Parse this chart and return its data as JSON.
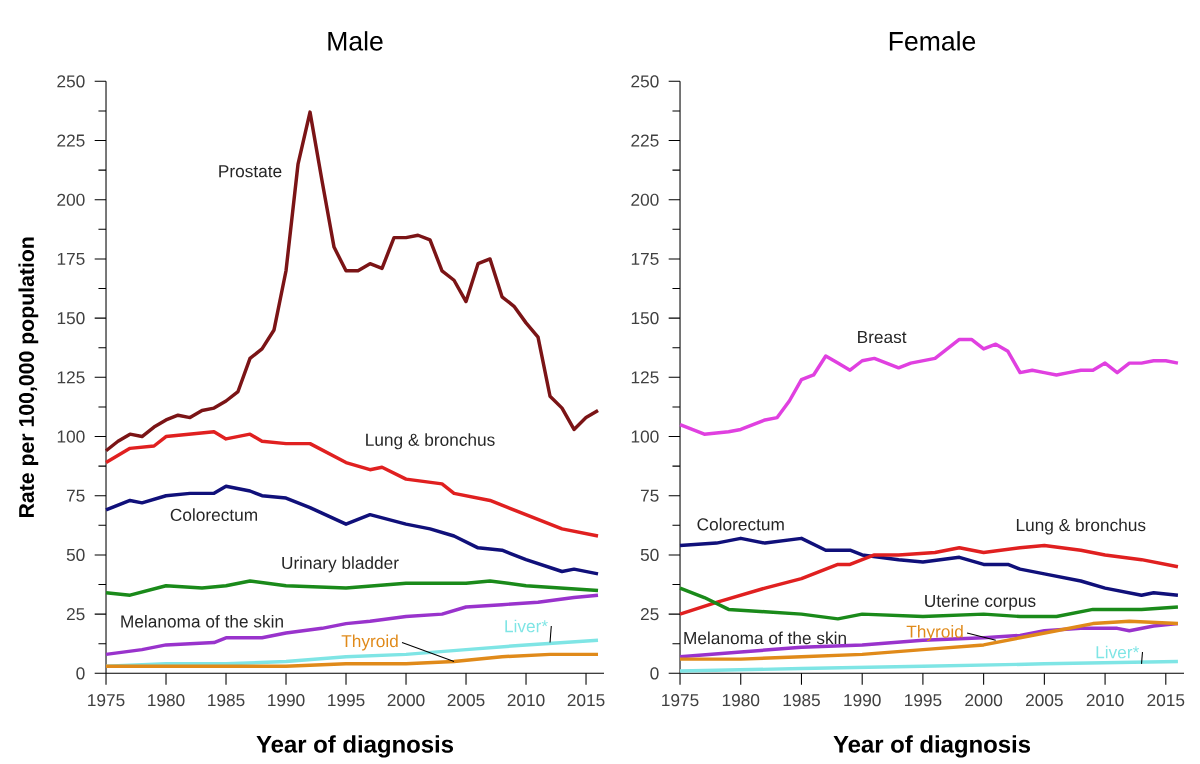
{
  "chart_data": [
    {
      "type": "line",
      "title": "Male",
      "xlabel": "Year of diagnosis",
      "ylabel": "Rate per 100,000 population",
      "xlim": [
        1975,
        2016.5
      ],
      "ylim": [
        0,
        250
      ],
      "xticks": [
        1975,
        1980,
        1985,
        1990,
        1995,
        2000,
        2005,
        2010,
        2015
      ],
      "yticks": [
        0,
        25,
        50,
        75,
        100,
        125,
        150,
        175,
        200,
        225,
        250
      ],
      "grid": false,
      "legend": false,
      "marker": "none",
      "line_style": "solid",
      "series": [
        {
          "name": "Prostate",
          "color": "#7b1416",
          "x": [
            1975,
            1976,
            1977,
            1978,
            1979,
            1980,
            1981,
            1982,
            1983,
            1984,
            1985,
            1986,
            1987,
            1988,
            1989,
            1990,
            1991,
            1992,
            1993,
            1994,
            1995,
            1996,
            1997,
            1998,
            1999,
            2000,
            2001,
            2002,
            2003,
            2004,
            2005,
            2006,
            2007,
            2008,
            2009,
            2010,
            2011,
            2012,
            2013,
            2014,
            2015,
            2016
          ],
          "values": [
            94,
            98,
            101,
            100,
            104,
            107,
            109,
            108,
            111,
            112,
            115,
            119,
            133,
            137,
            145,
            170,
            215,
            237,
            208,
            180,
            170,
            170,
            173,
            171,
            184,
            184,
            185,
            183,
            170,
            166,
            157,
            173,
            175,
            159,
            155,
            148,
            142,
            117,
            112,
            103,
            108,
            111
          ]
        },
        {
          "name": "Lung & bronchus",
          "color": "#e02020",
          "x": [
            1975,
            1977,
            1979,
            1980,
            1984,
            1985,
            1987,
            1988,
            1990,
            1992,
            1995,
            1997,
            1998,
            2000,
            2003,
            2004,
            2007,
            2010,
            2013,
            2016
          ],
          "values": [
            89,
            95,
            96,
            100,
            102,
            99,
            101,
            98,
            97,
            97,
            89,
            86,
            87,
            82,
            80,
            76,
            73,
            67,
            61,
            58
          ]
        },
        {
          "name": "Colorectum",
          "color": "#10107a",
          "x": [
            1975,
            1977,
            1978,
            1980,
            1982,
            1984,
            1985,
            1987,
            1988,
            1990,
            1992,
            1995,
            1997,
            2000,
            2002,
            2004,
            2006,
            2008,
            2010,
            2013,
            2014,
            2016
          ],
          "values": [
            69,
            73,
            72,
            75,
            76,
            76,
            79,
            77,
            75,
            74,
            70,
            63,
            67,
            63,
            61,
            58,
            53,
            52,
            48,
            43,
            44,
            42
          ]
        },
        {
          "name": "Urinary bladder",
          "color": "#1a8a1a",
          "x": [
            1975,
            1977,
            1980,
            1983,
            1985,
            1987,
            1990,
            1995,
            2000,
            2005,
            2007,
            2010,
            2013,
            2016
          ],
          "values": [
            34,
            33,
            37,
            36,
            37,
            39,
            37,
            36,
            38,
            38,
            39,
            37,
            36,
            35
          ]
        },
        {
          "name": "Melanoma of the skin",
          "color": "#9933cc",
          "x": [
            1975,
            1978,
            1980,
            1984,
            1985,
            1988,
            1990,
            1993,
            1995,
            1997,
            2000,
            2003,
            2005,
            2008,
            2011,
            2014,
            2016
          ],
          "values": [
            8,
            10,
            12,
            13,
            15,
            15,
            17,
            19,
            21,
            22,
            24,
            25,
            28,
            29,
            30,
            32,
            33
          ]
        },
        {
          "name": "Liver*",
          "color": "#7fe5e5",
          "x": [
            1975,
            1980,
            1985,
            1990,
            1995,
            2000,
            2005,
            2010,
            2016
          ],
          "values": [
            3,
            4,
            4,
            5,
            7,
            8,
            10,
            12,
            14
          ]
        },
        {
          "name": "Thyroid",
          "color": "#e08a1a",
          "x": [
            1975,
            1980,
            1985,
            1990,
            1995,
            2000,
            2004,
            2008,
            2012,
            2016
          ],
          "values": [
            3,
            3,
            3,
            3,
            4,
            4,
            5,
            7,
            8,
            8
          ]
        }
      ]
    },
    {
      "type": "line",
      "title": "Female",
      "xlabel": "Year of diagnosis",
      "xlim": [
        1975,
        2016.5
      ],
      "ylim": [
        0,
        250
      ],
      "xticks": [
        1975,
        1980,
        1985,
        1990,
        1995,
        2000,
        2005,
        2010,
        2015
      ],
      "yticks": [
        0,
        25,
        50,
        75,
        100,
        125,
        150,
        175,
        200,
        225,
        250
      ],
      "grid": false,
      "legend": false,
      "marker": "none",
      "line_style": "solid",
      "series": [
        {
          "name": "Breast",
          "color": "#e040e0",
          "x": [
            1975,
            1977,
            1979,
            1980,
            1982,
            1983,
            1984,
            1985,
            1986,
            1987,
            1988,
            1989,
            1990,
            1991,
            1992,
            1993,
            1994,
            1995,
            1996,
            1997,
            1998,
            1999,
            2000,
            2001,
            2002,
            2003,
            2004,
            2005,
            2006,
            2007,
            2008,
            2009,
            2010,
            2011,
            2012,
            2013,
            2014,
            2015,
            2016
          ],
          "values": [
            105,
            101,
            102,
            103,
            107,
            108,
            115,
            124,
            126,
            134,
            131,
            128,
            132,
            133,
            131,
            129,
            131,
            132,
            133,
            137,
            141,
            141,
            137,
            139,
            136,
            127,
            128,
            127,
            126,
            127,
            128,
            128,
            131,
            127,
            131,
            131,
            132,
            132,
            131
          ]
        },
        {
          "name": "Colorectum",
          "color": "#10107a",
          "x": [
            1975,
            1978,
            1980,
            1982,
            1985,
            1987,
            1989,
            1990,
            1993,
            1995,
            1998,
            2000,
            2002,
            2003,
            2005,
            2008,
            2010,
            2013,
            2014,
            2016
          ],
          "values": [
            54,
            55,
            57,
            55,
            57,
            52,
            52,
            50,
            48,
            47,
            49,
            46,
            46,
            44,
            42,
            39,
            36,
            33,
            34,
            33
          ]
        },
        {
          "name": "Lung & bronchus",
          "color": "#e02020",
          "x": [
            1975,
            1978,
            1980,
            1982,
            1985,
            1988,
            1989,
            1991,
            1993,
            1996,
            1998,
            2000,
            2003,
            2005,
            2008,
            2010,
            2013,
            2016
          ],
          "values": [
            25,
            30,
            33,
            36,
            40,
            46,
            46,
            50,
            50,
            51,
            53,
            51,
            53,
            54,
            52,
            50,
            48,
            45
          ]
        },
        {
          "name": "Uterine corpus",
          "color": "#1a8a1a",
          "x": [
            1975,
            1977,
            1979,
            1982,
            1985,
            1988,
            1990,
            1995,
            2000,
            2003,
            2006,
            2009,
            2013,
            2016
          ],
          "values": [
            36,
            32,
            27,
            26,
            25,
            23,
            25,
            24,
            25,
            24,
            24,
            27,
            27,
            28
          ]
        },
        {
          "name": "Melanoma of the skin",
          "color": "#9933cc",
          "x": [
            1975,
            1980,
            1985,
            1990,
            1995,
            2000,
            2003,
            2005,
            2008,
            2011,
            2012,
            2014,
            2016
          ],
          "values": [
            7,
            9,
            11,
            12,
            14,
            15,
            16,
            18,
            19,
            19,
            18,
            20,
            21
          ]
        },
        {
          "name": "Thyroid",
          "color": "#e08a1a",
          "x": [
            1975,
            1980,
            1985,
            1990,
            1995,
            2000,
            2003,
            2006,
            2009,
            2012,
            2016
          ],
          "values": [
            6,
            6,
            7,
            8,
            10,
            12,
            15,
            18,
            21,
            22,
            21
          ]
        },
        {
          "name": "Liver*",
          "color": "#7fe5e5",
          "x": [
            1975,
            1985,
            1995,
            2005,
            2016
          ],
          "values": [
            1,
            2,
            3,
            4,
            5
          ]
        }
      ]
    }
  ]
}
